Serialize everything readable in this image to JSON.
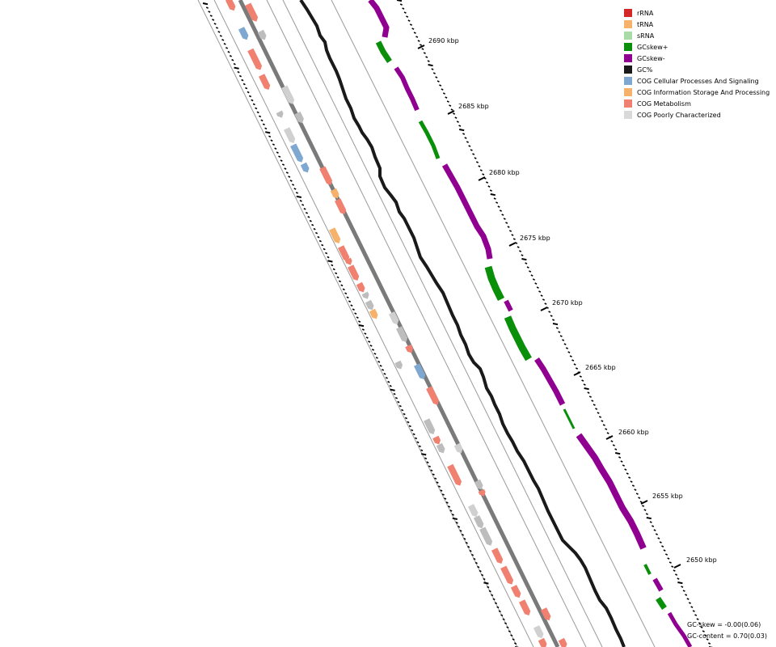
{
  "legend": {
    "items": [
      {
        "label": "rRNA",
        "color": "#d62728"
      },
      {
        "label": "tRNA",
        "color": "#f6b26b"
      },
      {
        "label": "sRNA",
        "color": "#a8dba8"
      },
      {
        "label": "GCskew+",
        "color": "#0a8f0a"
      },
      {
        "label": "GCskew-",
        "color": "#900090"
      },
      {
        "label": "GC%",
        "color": "#1a1a1a"
      },
      {
        "label": "COG Cellular Processes And Signaling",
        "color": "#7fa8d1"
      },
      {
        "label": "COG Information Storage And Processing",
        "color": "#f6b26b"
      },
      {
        "label": "COG Metabolism",
        "color": "#f08070"
      },
      {
        "label": "COG Poorly Characterized",
        "color": "#d9d9d9"
      }
    ]
  },
  "ticks": [
    {
      "label": "2690 kbp"
    },
    {
      "label": "2685 kbp"
    },
    {
      "label": "2680 kbp"
    },
    {
      "label": "2675 kbp"
    },
    {
      "label": "2670 kbp"
    },
    {
      "label": "2665 kbp"
    },
    {
      "label": "2660 kbp"
    },
    {
      "label": "2655 kbp"
    },
    {
      "label": "2650 kbp"
    }
  ],
  "stats": {
    "gc_skew": "GC-skew = -0.00(0.06)",
    "gc_content": "GC-content = 0.70(0.03)"
  }
}
